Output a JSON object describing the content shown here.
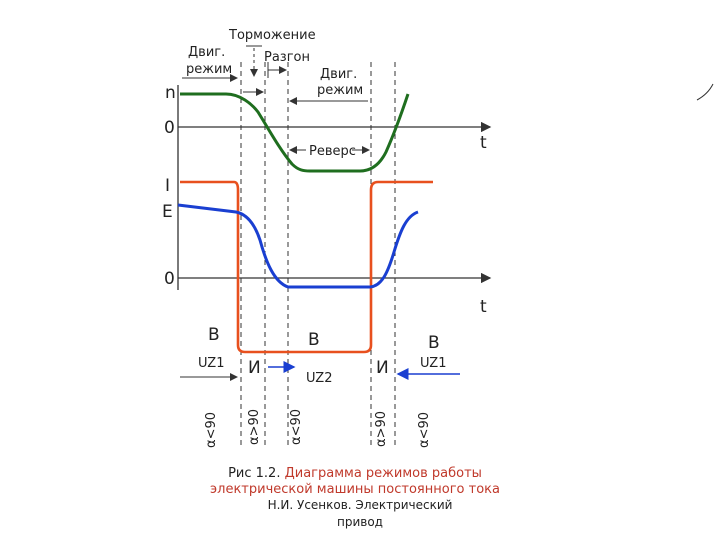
{
  "labels": {
    "tormozhenie": "Торможение",
    "dvig_rezhim_1a": "Двиг.",
    "dvig_rezhim_1b": "режим",
    "razgon": "Разгон",
    "dvig_rezhim_2a": "Двиг.",
    "dvig_rezhim_2b": "режим",
    "revers": "Реверс",
    "axis_n": "n",
    "axis_I": "I",
    "axis_E": "E",
    "zero_top": "0",
    "zero_bottom": "0",
    "t_top": "t",
    "t_bottom": "t",
    "mode_v_left": "В",
    "mode_v_mid": "В",
    "mode_v_right": "В",
    "uz1_left": "UZ1",
    "uz1_right": "UZ1",
    "uz2": "UZ2",
    "inv_left": "И",
    "inv_right": "И",
    "alpha_1": "α<90",
    "alpha_2": "α>90",
    "alpha_3": "α<90",
    "alpha_4": "α>90",
    "alpha_5": "α<90"
  },
  "caption": {
    "prefix": "Рис 1.2.",
    "title": "Диаграмма режимов работы электрической машины постоянного тока",
    "author_line1": "Н.И. Усенков. Электрический",
    "author_line2": "привод"
  },
  "colors": {
    "speed_curve": "#1f6e1f",
    "current_curve": "#e8501e",
    "emf_curve": "#1a3fd1",
    "uz2_arrow": "#1a3fd1",
    "uz1_right_arrow": "#1a3fd1",
    "axis": "#333333"
  }
}
